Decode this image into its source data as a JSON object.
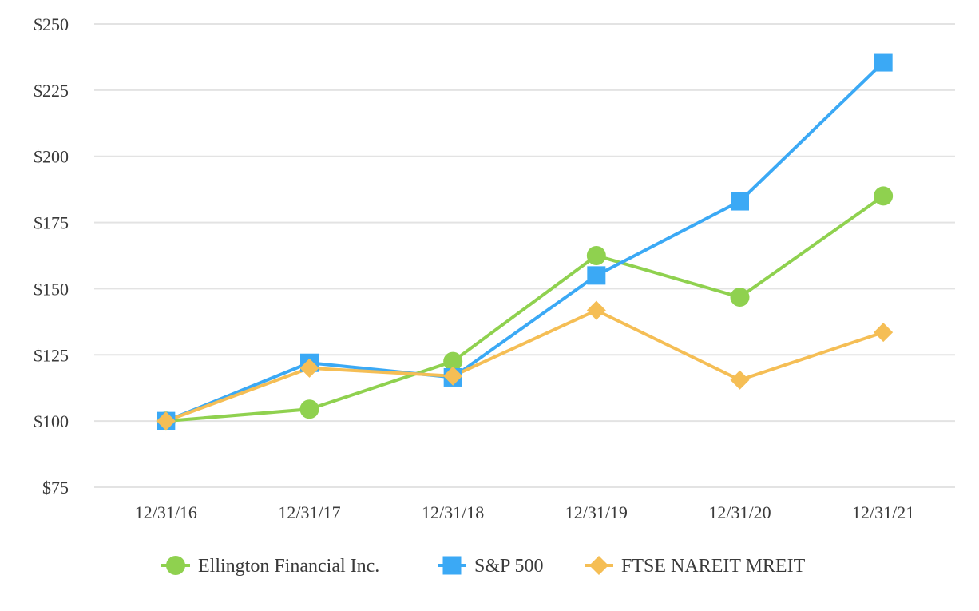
{
  "chart_data": {
    "type": "line",
    "categories": [
      "12/31/16",
      "12/31/17",
      "12/31/18",
      "12/31/19",
      "12/31/20",
      "12/31/21"
    ],
    "y_ticks": [
      75,
      100,
      125,
      150,
      175,
      200,
      225,
      250
    ],
    "y_tick_labels": [
      "$75",
      "$100",
      "$125",
      "$150",
      "$175",
      "$200",
      "$225",
      "$250"
    ],
    "ylim": [
      75,
      250
    ],
    "grid": "horizontal",
    "legend_position": "bottom-center",
    "series": [
      {
        "name": "Ellington Financial Inc.",
        "marker": "circle",
        "color": "#8fd14f",
        "values": [
          100,
          104.5,
          122.5,
          162.5,
          146.8,
          185
        ]
      },
      {
        "name": "S&P 500",
        "marker": "square",
        "color": "#3ba9f5",
        "values": [
          100,
          122,
          116.5,
          155,
          183,
          235.5
        ]
      },
      {
        "name": "FTSE NAREIT MREIT",
        "marker": "diamond",
        "color": "#f5be55",
        "values": [
          100,
          120,
          117,
          141.8,
          115.5,
          133.5
        ]
      }
    ]
  }
}
